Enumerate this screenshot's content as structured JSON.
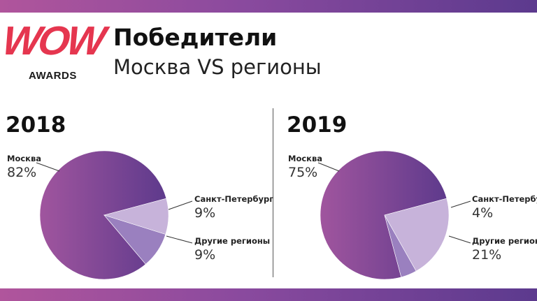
{
  "header": {
    "logo_text": "WOW",
    "logo_sub": "AWARDS",
    "title": "Победители",
    "subtitle": "Москва VS регионы"
  },
  "colors": {
    "band_start": "#b0559c",
    "band_end": "#5c3a8e",
    "logo_red": "#e5364f",
    "slice_main_start": "#a0559e",
    "slice_main_end": "#5e3a8c",
    "slice_spb": "#9a80bf",
    "slice_other": "#c7b3da"
  },
  "chart_data": [
    {
      "type": "pie",
      "title": "2018",
      "categories": [
        "Москва",
        "Санкт-Петербург",
        "Другие регионы"
      ],
      "values": [
        82,
        9,
        9
      ],
      "value_labels": [
        "82%",
        "9%",
        "9%"
      ]
    },
    {
      "type": "pie",
      "title": "2019",
      "categories": [
        "Москва",
        "Санкт-Петербург",
        "Другие регионы"
      ],
      "values": [
        75,
        4,
        21
      ],
      "value_labels": [
        "75%",
        "4%",
        "21%"
      ]
    }
  ]
}
